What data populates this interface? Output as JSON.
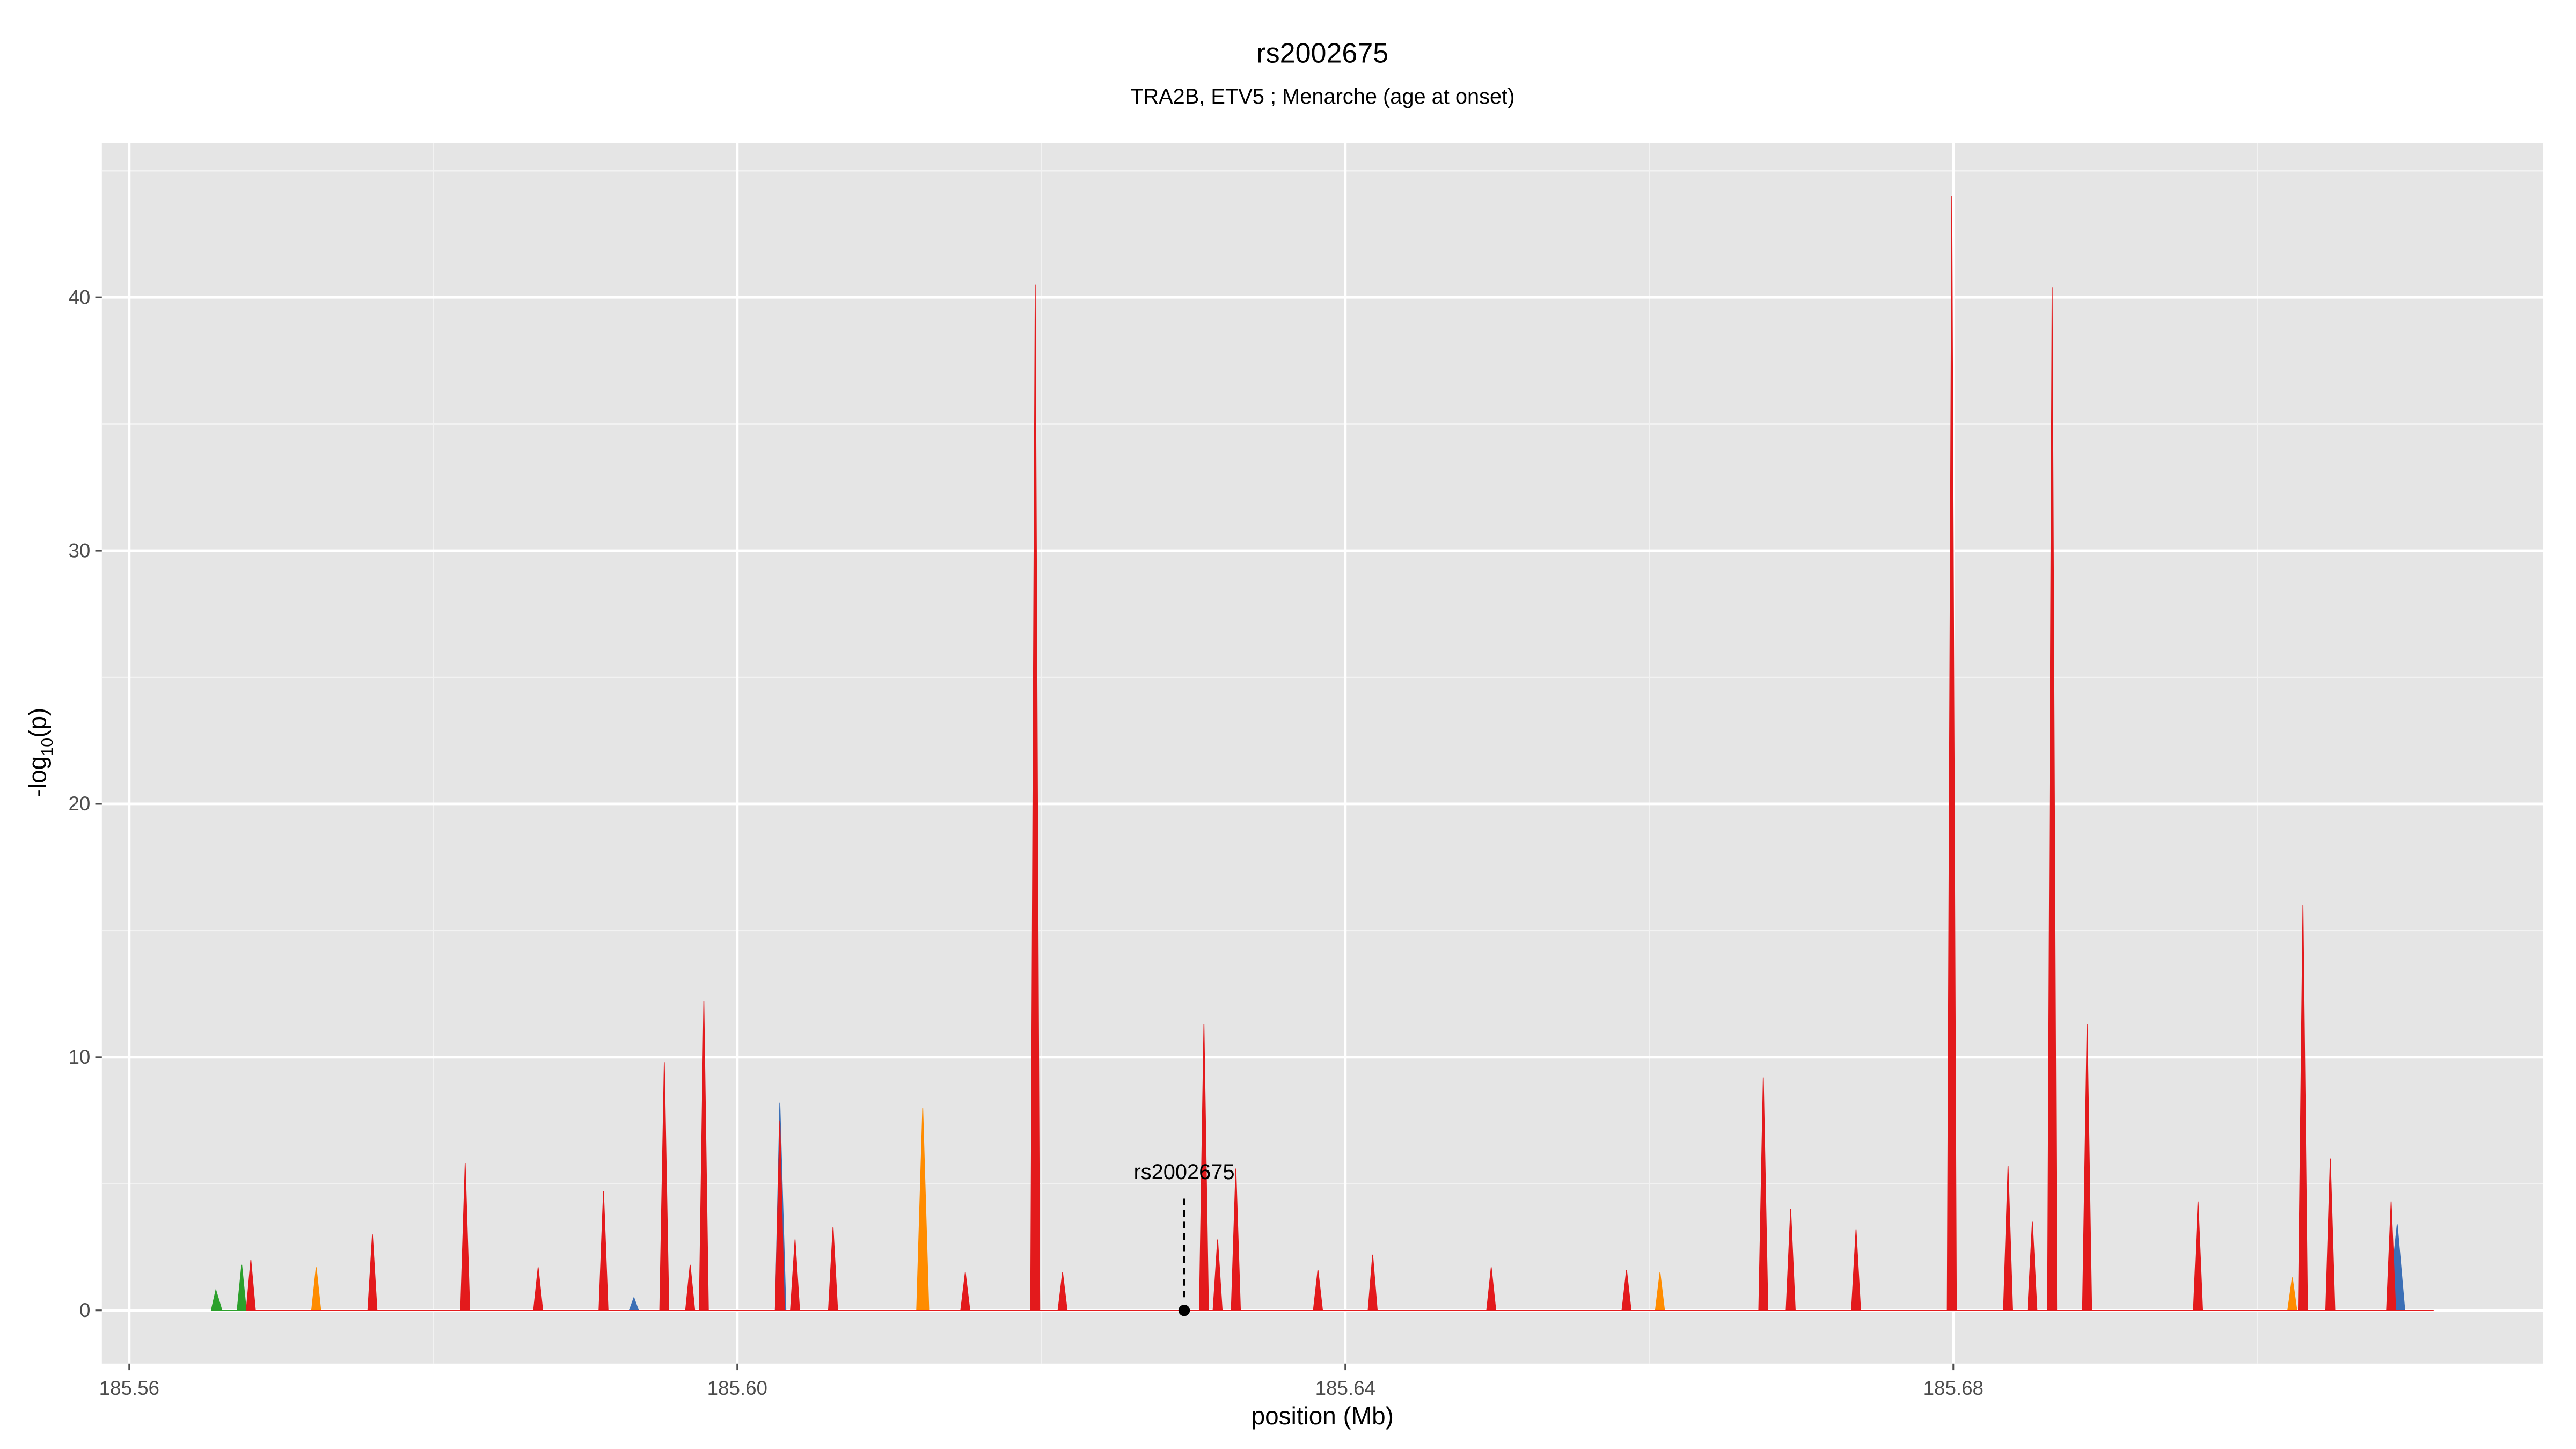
{
  "chart_data": {
    "type": "area",
    "title": "rs2002675",
    "subtitle": "TRA2B, ETV5 ; Menarche (age at onset)",
    "xlabel": "position (Mb)",
    "ylabel": [
      "-log",
      "10",
      "(p)"
    ],
    "xlim": [
      185.5582,
      185.7188
    ],
    "ylim": [
      -2.1,
      46.1
    ],
    "xticks": [
      185.56,
      {
        "value": 185.6,
        "label": "185.60"
      },
      185.64,
      185.68
    ],
    "yticks": [
      0,
      10,
      20,
      30,
      40
    ],
    "xminor": [
      185.58,
      185.62,
      185.66,
      185.7
    ],
    "yminor": [
      5,
      15,
      25,
      35,
      45
    ],
    "grid": true,
    "annotation": {
      "text": "rs2002675",
      "x": 185.6294,
      "y": 0
    },
    "series": [
      {
        "name": "blue",
        "color": "#3b6fb6",
        "x": [
          185.5929,
          185.5932,
          185.5935,
          185.6025,
          185.6028,
          185.6032,
          185.7086,
          185.7092,
          185.7097
        ],
        "values": [
          0,
          0.5,
          0,
          0,
          8.2,
          0,
          0,
          3.4,
          0
        ]
      },
      {
        "name": "orange",
        "color": "#ff8c00",
        "x": [
          185.572,
          185.5723,
          185.5726,
          185.6118,
          185.6122,
          185.6126,
          185.6604,
          185.6607,
          185.661,
          185.702,
          185.7023,
          185.7026
        ],
        "values": [
          0,
          1.7,
          0,
          0,
          8,
          0,
          0,
          1.5,
          0,
          0,
          1.3,
          0
        ]
      },
      {
        "name": "green",
        "color": "#2ca02c",
        "x": [
          185.5654,
          185.5657,
          185.5661,
          185.5671,
          185.5674,
          185.5677
        ],
        "values": [
          0,
          0.8,
          0,
          0,
          1.8,
          0
        ]
      },
      {
        "name": "red",
        "color": "#e31a1c",
        "x": [
          185.5677,
          185.568,
          185.5683,
          185.5757,
          185.576,
          185.5763,
          185.5818,
          185.5821,
          185.5824,
          185.5866,
          185.5869,
          185.5872,
          185.5909,
          185.5912,
          185.5915,
          185.5949,
          185.5952,
          185.5955,
          185.5966,
          185.5969,
          185.5972,
          185.5975,
          185.5978,
          185.5981,
          185.6025,
          185.6028,
          185.6031,
          185.6035,
          185.6038,
          185.6041,
          185.606,
          185.6063,
          185.6066,
          185.6147,
          185.615,
          185.6153,
          185.6193,
          185.6196,
          185.6199,
          185.6211,
          185.6214,
          185.6217,
          185.6304,
          185.6307,
          185.631,
          185.6313,
          185.6316,
          185.6319,
          185.6325,
          185.6328,
          185.6331,
          185.6379,
          185.6382,
          185.6385,
          185.6415,
          185.6418,
          185.6421,
          185.6493,
          185.6496,
          185.6499,
          185.6582,
          185.6585,
          185.6588,
          185.6672,
          185.6675,
          185.6678,
          185.669,
          185.6693,
          185.6696,
          185.6733,
          185.6736,
          185.6739,
          185.6796,
          185.6799,
          185.6802,
          185.6833,
          185.6836,
          185.6839,
          185.6849,
          185.6852,
          185.6855,
          185.6862,
          185.6865,
          185.6868,
          185.6885,
          185.6888,
          185.6891,
          185.6958,
          185.6961,
          185.6964,
          185.7027,
          185.703,
          185.7033,
          185.7045,
          185.7048,
          185.7051,
          185.7085,
          185.7088,
          185.7091,
          185.7116
        ],
        "values": [
          0,
          2,
          0,
          0,
          3,
          0,
          0,
          5.8,
          0,
          0,
          1.7,
          0,
          0,
          4.7,
          0,
          0,
          9.8,
          0,
          0,
          1.8,
          0,
          0,
          12.2,
          0,
          0,
          7.5,
          0,
          0,
          2.8,
          0,
          0,
          3.3,
          0,
          0,
          1.5,
          0,
          0,
          40.5,
          0,
          0,
          1.5,
          0,
          0,
          11.3,
          0,
          0,
          2.8,
          0,
          0,
          5.6,
          0,
          0,
          1.6,
          0,
          0,
          2.2,
          0,
          0,
          1.7,
          0,
          0,
          1.6,
          0,
          0,
          9.2,
          0,
          0,
          4,
          0,
          0,
          3.2,
          0,
          0,
          44,
          0,
          0,
          5.7,
          0,
          0,
          3.5,
          0,
          0,
          40.4,
          0,
          0,
          11.3,
          0,
          0,
          4.3,
          0,
          0,
          16,
          0,
          0,
          6,
          0,
          0,
          4.3,
          0,
          0
        ]
      }
    ]
  }
}
